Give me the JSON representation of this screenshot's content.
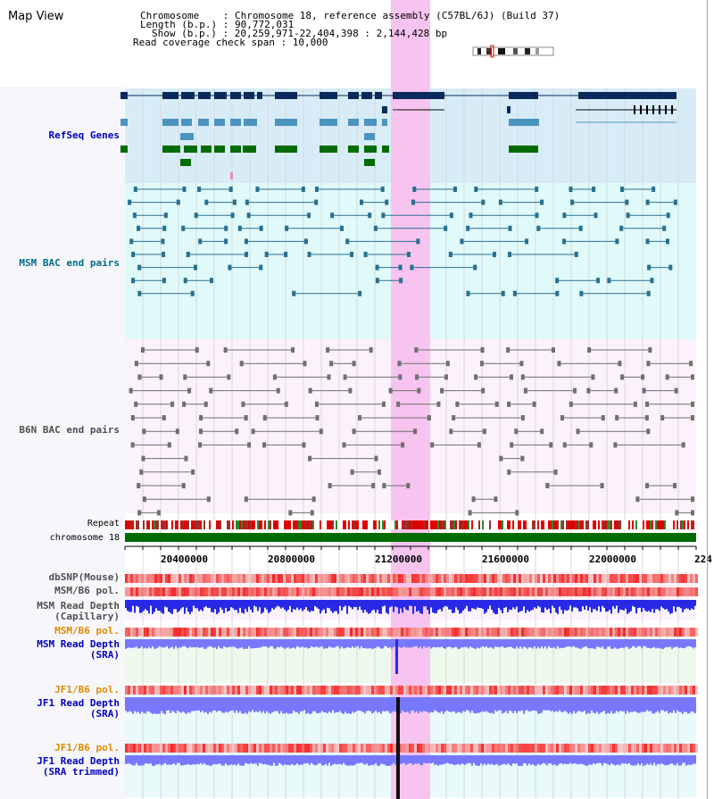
{
  "map_title": "Map View",
  "header": {
    "line1": "Chromosome    : Chromosome 18, reference assembly (C57BL/6J) (Build 37)",
    "line2": "Length (b.p.) : 90,772,031",
    "line3": "Show (b.p.) : 20,259,971-22,404,398 : 2,144,428 bp",
    "line4": "Read coverage check span : 10,000"
  },
  "tracks": {
    "refseq": "RefSeq Genes",
    "msm_bac": "MSM BAC end pairs",
    "b6n_bac": "B6N BAC end pairs",
    "repeat": "Repeat",
    "chromosome": "chromosome 18",
    "dbsnp": "dbSNP(Mouse)",
    "msm_b6_pol_1": "MSM/B6 pol.",
    "msm_depth_cap": "MSM Read Depth\n(Capillary)",
    "msm_b6_pol_2": "MSM/B6 pol.",
    "msm_depth_sra": "MSM Read Depth\n(SRA)",
    "jf1_b6_pol_1": "JF1/B6 pol.",
    "jf1_depth_sra": "JF1 Read Depth\n(SRA)",
    "jf1_b6_pol_2": "JF1/B6 pol.",
    "jf1_depth_trim": "JF1 Read Depth\n(SRA trimmed)"
  },
  "axis_ticks": [
    "20400000",
    "20800000",
    "21200000",
    "21600000",
    "22000000",
    "224"
  ],
  "colors": {
    "refseq_bg": "#d8ecf8",
    "msm_bg": "#e0fafa",
    "b6n_bg": "#fbf2fb",
    "highlight": "#f6c4ef",
    "gene_dark": "#0a2a5c",
    "gene_light": "#4b94c0",
    "gene_green": "#006b00",
    "msm_pair": "#2a7090",
    "b6n_pair": "#707070",
    "depth_blue": "#2828e6",
    "depth_light": "#7878ff",
    "pol_red": "#f03c3c"
  }
}
